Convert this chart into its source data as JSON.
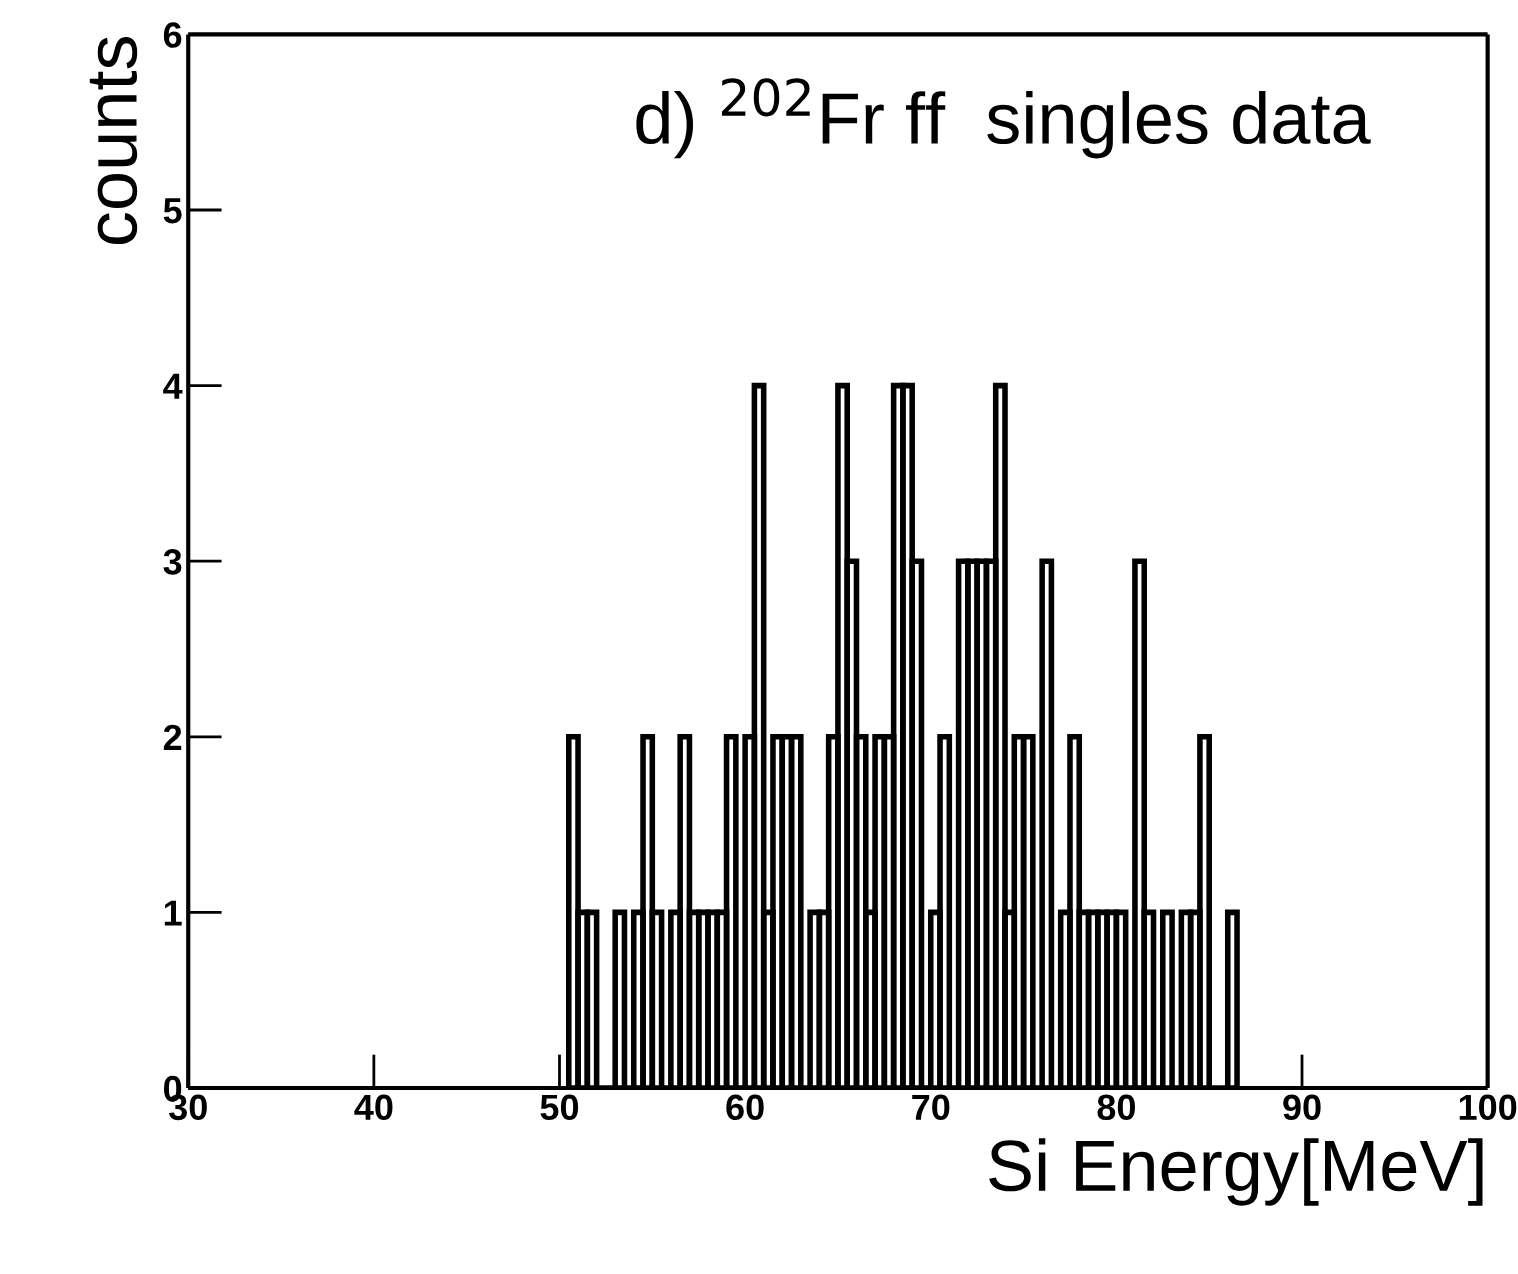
{
  "chart_data": {
    "type": "histogram",
    "title": "d) $^{202}$Fr ff  singles data",
    "xlabel": "Si Energy[MeV]",
    "ylabel": "counts",
    "bins": [
      50.5,
      51,
      51.5,
      52,
      52.5,
      53,
      53.5,
      54,
      54.5,
      55,
      55.5,
      56,
      56.5,
      57,
      57.5,
      58,
      58.5,
      59,
      59.5,
      60,
      60.5,
      61,
      61.5,
      62,
      62.5,
      63,
      63.5,
      64,
      64.5,
      65,
      65.5,
      66,
      66.5,
      67,
      67.5,
      68,
      68.5,
      69,
      69.5,
      70,
      70.5,
      71,
      71.5,
      72,
      72.5,
      73,
      73.5,
      74,
      74.5,
      75,
      75.5,
      76,
      76.5,
      77,
      77.5,
      78,
      78.5,
      79,
      79.5,
      80,
      80.5,
      81,
      81.5,
      82,
      82.5,
      83,
      83.5,
      84,
      84.5,
      85,
      85.5,
      86,
      86.5
    ],
    "values": [
      2,
      1,
      1,
      0,
      0,
      1,
      0,
      1,
      2,
      1,
      0,
      1,
      2,
      1,
      1,
      1,
      1,
      2,
      0,
      2,
      4,
      1,
      2,
      2,
      2,
      0,
      1,
      1,
      2,
      4,
      3,
      2,
      1,
      2,
      2,
      4,
      4,
      3,
      0,
      1,
      2,
      0,
      3,
      3,
      3,
      3,
      4,
      1,
      2,
      2,
      0,
      3,
      0,
      1,
      2,
      1,
      1,
      1,
      1,
      1,
      0,
      3,
      1,
      0,
      1,
      0,
      1,
      1,
      2,
      0,
      0,
      1
    ],
    "color": "#000000",
    "xlim": [
      30,
      100
    ],
    "xticks": [
      30,
      40,
      50,
      60,
      70,
      80,
      90,
      100
    ],
    "ylim": [
      0,
      6
    ],
    "yticks": [
      0,
      1,
      2,
      3,
      4,
      5,
      6
    ],
    "grid": false,
    "legend": false
  }
}
